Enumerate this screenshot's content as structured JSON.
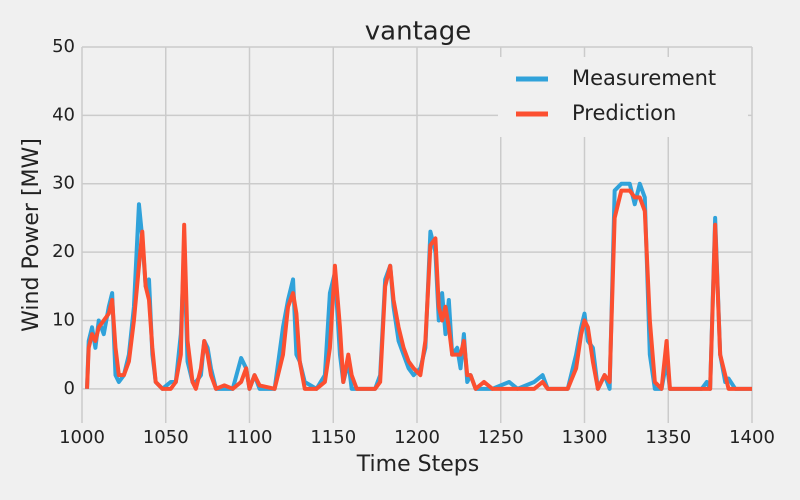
{
  "chart_data": {
    "type": "line",
    "title": "vantage",
    "xlabel": "Time Steps",
    "ylabel": "Wind Power [MW]",
    "x": [
      1003,
      1004,
      1006,
      1008,
      1010,
      1013,
      1016,
      1018,
      1020,
      1022,
      1025,
      1028,
      1031,
      1034,
      1036,
      1038,
      1040,
      1042,
      1044,
      1048,
      1053,
      1056,
      1059,
      1061,
      1063,
      1066,
      1068,
      1071,
      1073,
      1075,
      1077,
      1080,
      1085,
      1090,
      1095,
      1098,
      1100,
      1103,
      1106,
      1115,
      1120,
      1123,
      1126,
      1128,
      1130,
      1133,
      1140,
      1145,
      1148,
      1151,
      1154,
      1156,
      1159,
      1161,
      1164,
      1175,
      1178,
      1181,
      1184,
      1186,
      1189,
      1192,
      1195,
      1198,
      1202,
      1205,
      1208,
      1211,
      1213,
      1215,
      1217,
      1219,
      1221,
      1224,
      1226,
      1228,
      1230,
      1232,
      1235,
      1240,
      1245,
      1255,
      1260,
      1270,
      1275,
      1278,
      1290,
      1295,
      1298,
      1300,
      1302,
      1305,
      1308,
      1312,
      1315,
      1318,
      1322,
      1327,
      1330,
      1333,
      1336,
      1339,
      1342,
      1346,
      1349,
      1351,
      1360,
      1370,
      1373,
      1375,
      1378,
      1381,
      1384,
      1386,
      1390,
      1400
    ],
    "series": [
      {
        "name": "Measurement",
        "color": "#30a2da",
        "values": [
          0,
          7,
          9,
          6,
          10,
          8,
          12,
          14,
          2,
          1,
          2,
          5,
          12,
          27,
          22,
          15,
          16,
          5,
          1,
          0,
          1,
          1,
          8,
          20,
          4,
          1,
          1,
          2,
          7,
          6,
          3,
          0,
          0,
          0,
          4.5,
          3,
          0,
          2,
          0,
          0,
          9,
          13,
          16,
          5,
          4,
          1,
          0,
          2,
          14,
          17,
          5,
          1,
          4,
          0,
          0,
          0,
          2,
          16,
          18,
          12,
          7,
          5,
          3,
          2,
          3,
          6,
          23,
          20,
          10,
          14,
          8,
          13,
          5,
          6,
          3,
          8,
          1,
          2,
          0,
          0,
          0,
          1,
          0,
          1,
          2,
          0,
          0,
          5,
          9,
          11,
          7,
          6,
          0,
          2,
          0,
          29,
          30,
          30,
          27,
          30,
          28,
          5,
          0,
          0,
          4,
          0,
          0,
          0,
          1,
          0,
          25,
          5,
          1,
          1.5,
          0,
          0
        ]
      },
      {
        "name": "Prediction",
        "color": "#fc4f30",
        "values": [
          0,
          6,
          8,
          7,
          9,
          10,
          11,
          13,
          6,
          2,
          2,
          4,
          10,
          18,
          23,
          15,
          13,
          6,
          1,
          0,
          0,
          1,
          5,
          24,
          7,
          1,
          0,
          3,
          7,
          5,
          2,
          0,
          0.5,
          0,
          1,
          3,
          0,
          2,
          0.5,
          0,
          5,
          12,
          14,
          11,
          4,
          0,
          0,
          1,
          6,
          18,
          9,
          1,
          5,
          2,
          0,
          0,
          1,
          15,
          18,
          13,
          9,
          6,
          4,
          3,
          2,
          7,
          21,
          22,
          12,
          10,
          12,
          9,
          5,
          5,
          5,
          7,
          2,
          2,
          0,
          1,
          0,
          0,
          0,
          0,
          1,
          0,
          0,
          3,
          8,
          10,
          9,
          4,
          0,
          2,
          1,
          25,
          29,
          29,
          28,
          28,
          26,
          10,
          1,
          0,
          7,
          0,
          0,
          0,
          0,
          0,
          24,
          5,
          2,
          0,
          0,
          0
        ]
      }
    ],
    "xlim": [
      1000,
      1400
    ],
    "xticks": [
      1000,
      1050,
      1100,
      1150,
      1200,
      1250,
      1300,
      1350,
      1400
    ],
    "ylim": [
      -5,
      50
    ],
    "yticks": [
      0,
      10,
      20,
      30,
      40,
      50
    ],
    "grid": true,
    "legend": "upper right"
  }
}
